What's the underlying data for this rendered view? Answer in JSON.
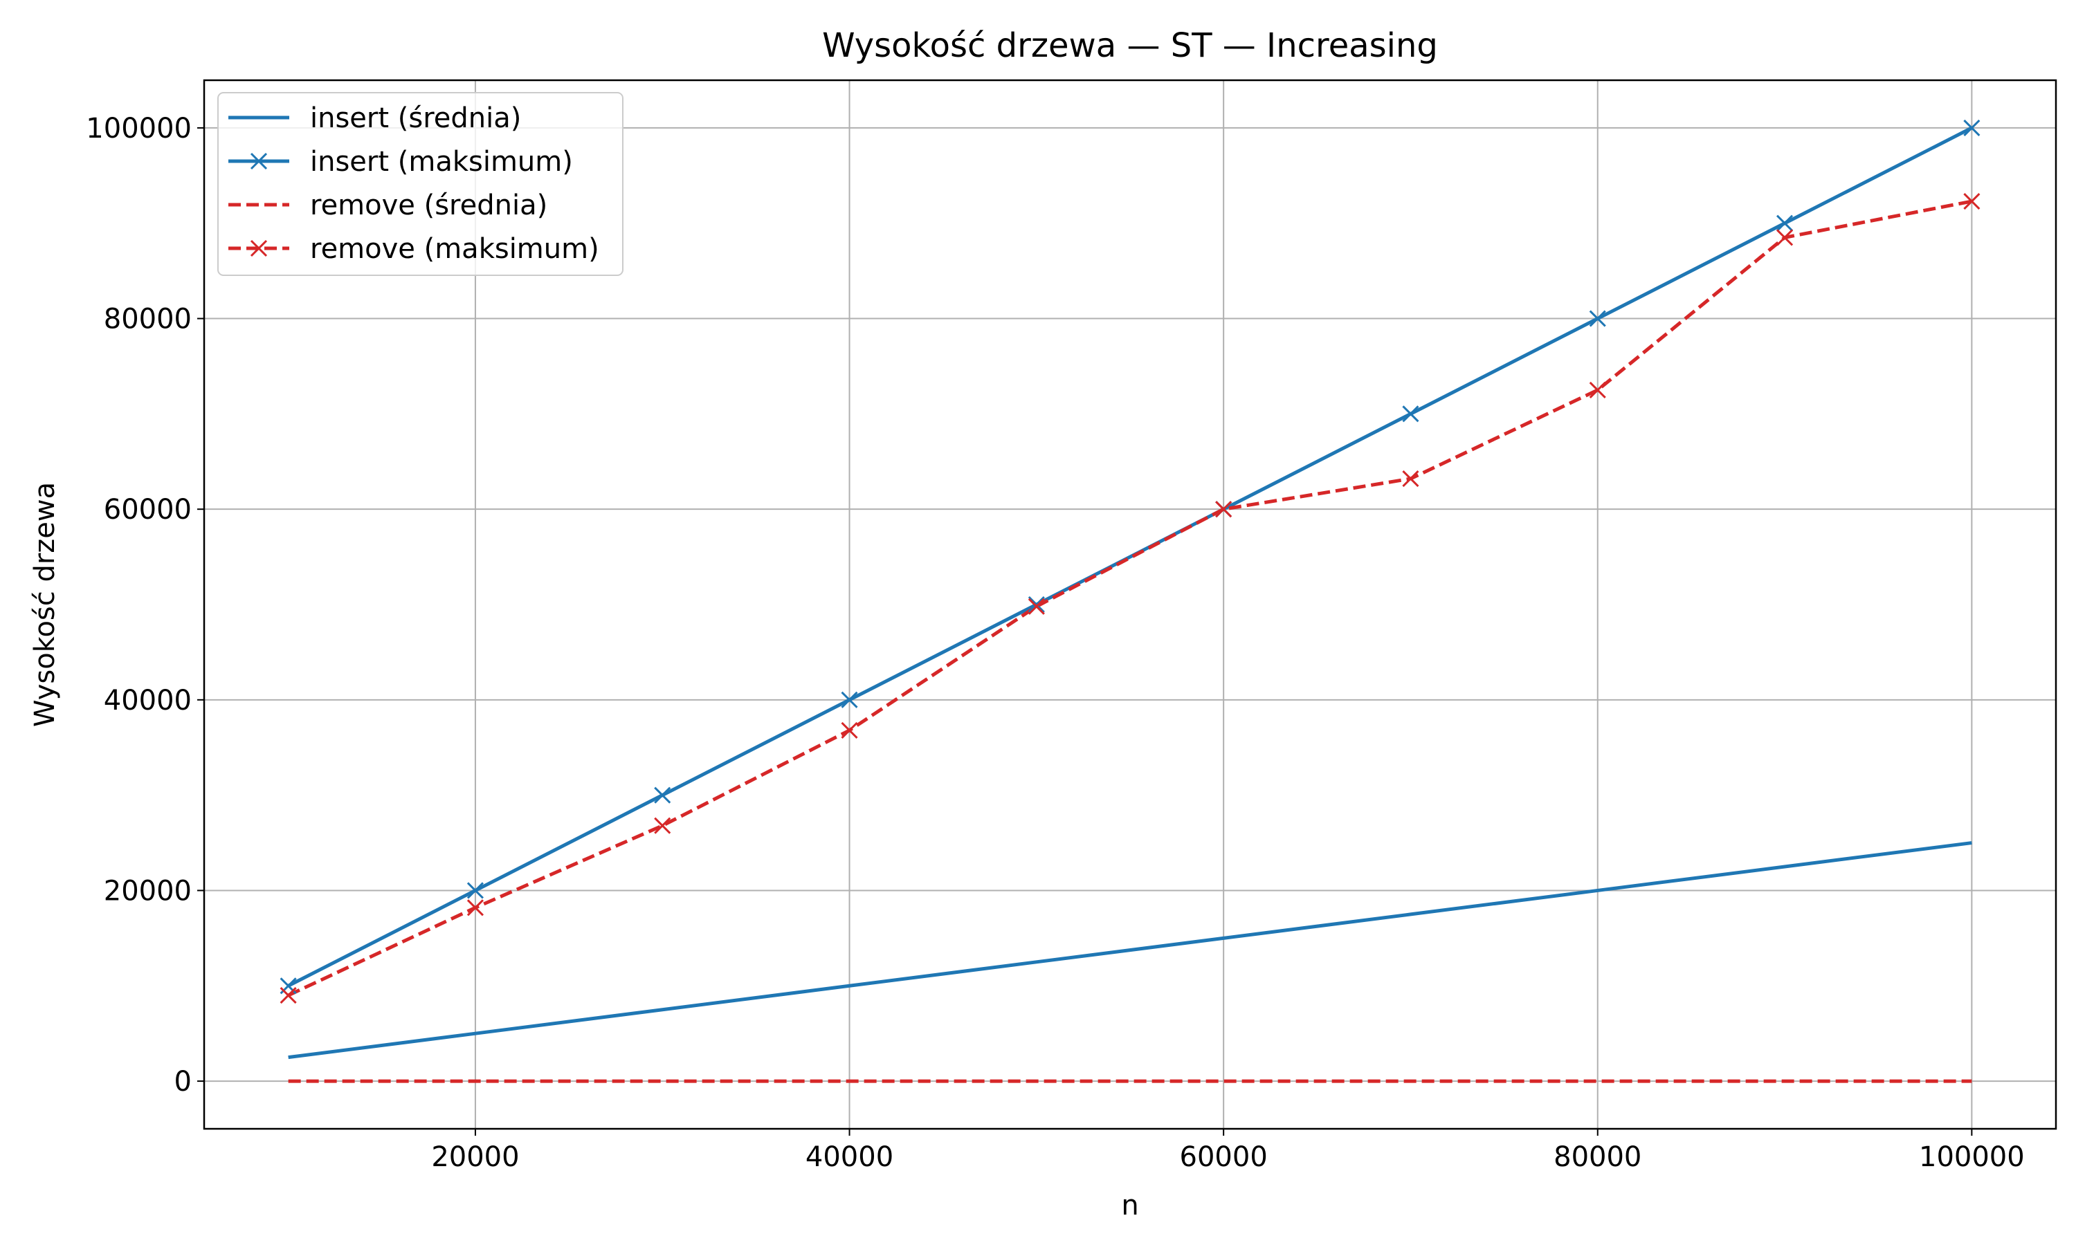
{
  "chart_data": {
    "type": "line",
    "title": "Wysokość drzewa — ST — Increasing",
    "xlabel": "n",
    "ylabel": "Wysokość drzewa",
    "xlim": [
      5500,
      104500
    ],
    "ylim": [
      -5000,
      105000
    ],
    "xticks": [
      20000,
      40000,
      60000,
      80000,
      100000
    ],
    "yticks": [
      0,
      20000,
      40000,
      60000,
      80000,
      100000
    ],
    "grid": true,
    "legend_position": "top-left",
    "x": [
      10000,
      20000,
      30000,
      40000,
      50000,
      60000,
      70000,
      80000,
      90000,
      100000
    ],
    "series": [
      {
        "name": "insert (średnia)",
        "color": "#1f77b4",
        "dashed": false,
        "marker": "none",
        "values": [
          2500,
          5000,
          7500,
          10000,
          12500,
          15000,
          17500,
          20000,
          22500,
          25000
        ]
      },
      {
        "name": "insert (maksimum)",
        "color": "#1f77b4",
        "dashed": false,
        "marker": "x",
        "values": [
          10000,
          20000,
          30000,
          40000,
          50000,
          60000,
          70000,
          80000,
          90000,
          100000
        ]
      },
      {
        "name": "remove (średnia)",
        "color": "#d62728",
        "dashed": true,
        "marker": "none",
        "values": [
          0,
          0,
          0,
          0,
          0,
          0,
          0,
          0,
          0,
          0
        ]
      },
      {
        "name": "remove (maksimum)",
        "color": "#d62728",
        "dashed": true,
        "marker": "x",
        "values": [
          9000,
          18200,
          26800,
          36800,
          49800,
          60000,
          63200,
          72500,
          88500,
          92300
        ]
      }
    ]
  }
}
